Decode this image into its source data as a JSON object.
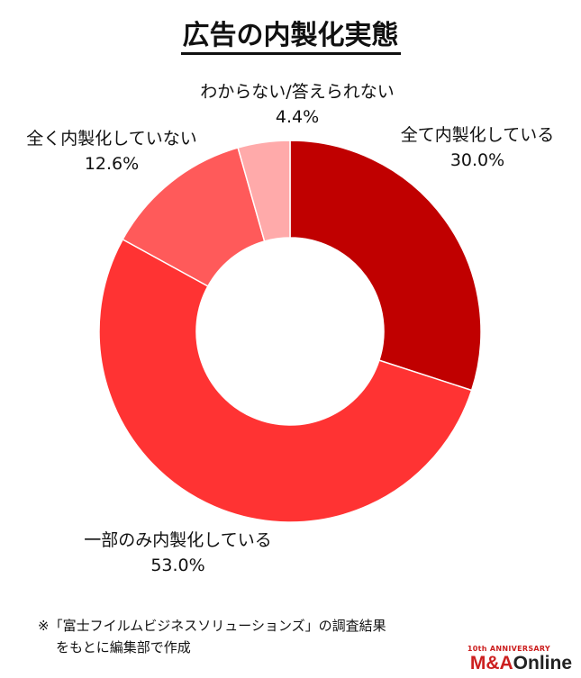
{
  "chart_data": {
    "type": "pie",
    "title": "広告の内製化実態",
    "hole": true,
    "slices": [
      {
        "label": "全て内製化している",
        "value": 30.0,
        "value_text": "30.0%",
        "color": "#c00000"
      },
      {
        "label": "一部のみ内製化している",
        "value": 53.0,
        "value_text": "53.0%",
        "color": "#ff3333"
      },
      {
        "label": "全く内製化していない",
        "value": 12.6,
        "value_text": "12.6%",
        "color": "#ff5a5a"
      },
      {
        "label": "わからない/答えられない",
        "value": 4.4,
        "value_text": "4.4%",
        "color": "#ffaaaa"
      }
    ]
  },
  "note": {
    "line1": "※「富士フイルムビジネスソリューションズ」の調査結果",
    "line2": "をもとに編集部で作成"
  },
  "logo": {
    "sub": "10th ANNIVERSARY",
    "brand": "M&A",
    "brand2": "Online"
  }
}
